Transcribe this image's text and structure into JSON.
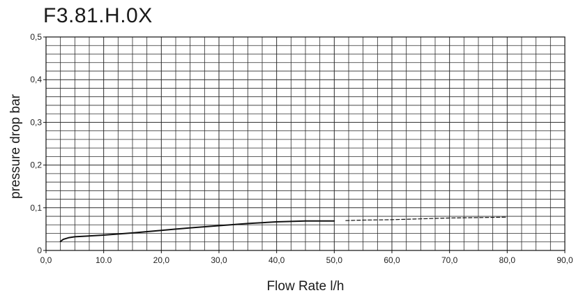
{
  "chart_data": {
    "type": "line",
    "title": "F3.81.H.0X",
    "xlabel": "Flow Rate l/h",
    "ylabel": "pressure drop bar",
    "xlim": [
      0,
      90
    ],
    "ylim": [
      0,
      0.5
    ],
    "x_ticks": [
      "0,0",
      "10.0",
      "20,0",
      "30,0",
      "40,0",
      "50,0",
      "60,0",
      "70,0",
      "80,0",
      "90,0"
    ],
    "y_ticks": [
      "0",
      "0,1",
      "0,2",
      "0,3",
      "0,4",
      "0,5"
    ],
    "x_tick_values": [
      0,
      10,
      20,
      30,
      40,
      50,
      60,
      70,
      80,
      90
    ],
    "y_tick_values": [
      0,
      0.1,
      0.2,
      0.3,
      0.4,
      0.5
    ],
    "grid": true,
    "colors": {
      "curve": "#111111",
      "grid": "#2a2a2a",
      "text": "#1a1a1a"
    },
    "series": [
      {
        "style": "solid",
        "x": [
          2.5,
          3,
          4,
          5,
          10,
          15,
          20,
          25,
          30,
          35,
          40,
          45,
          50
        ],
        "y": [
          0.021,
          0.026,
          0.03,
          0.032,
          0.036,
          0.041,
          0.047,
          0.053,
          0.058,
          0.063,
          0.067,
          0.069,
          0.069
        ]
      },
      {
        "style": "dashed",
        "x": [
          52,
          55,
          60,
          65,
          70,
          75,
          80
        ],
        "y": [
          0.07,
          0.071,
          0.072,
          0.074,
          0.076,
          0.077,
          0.078
        ]
      }
    ]
  }
}
